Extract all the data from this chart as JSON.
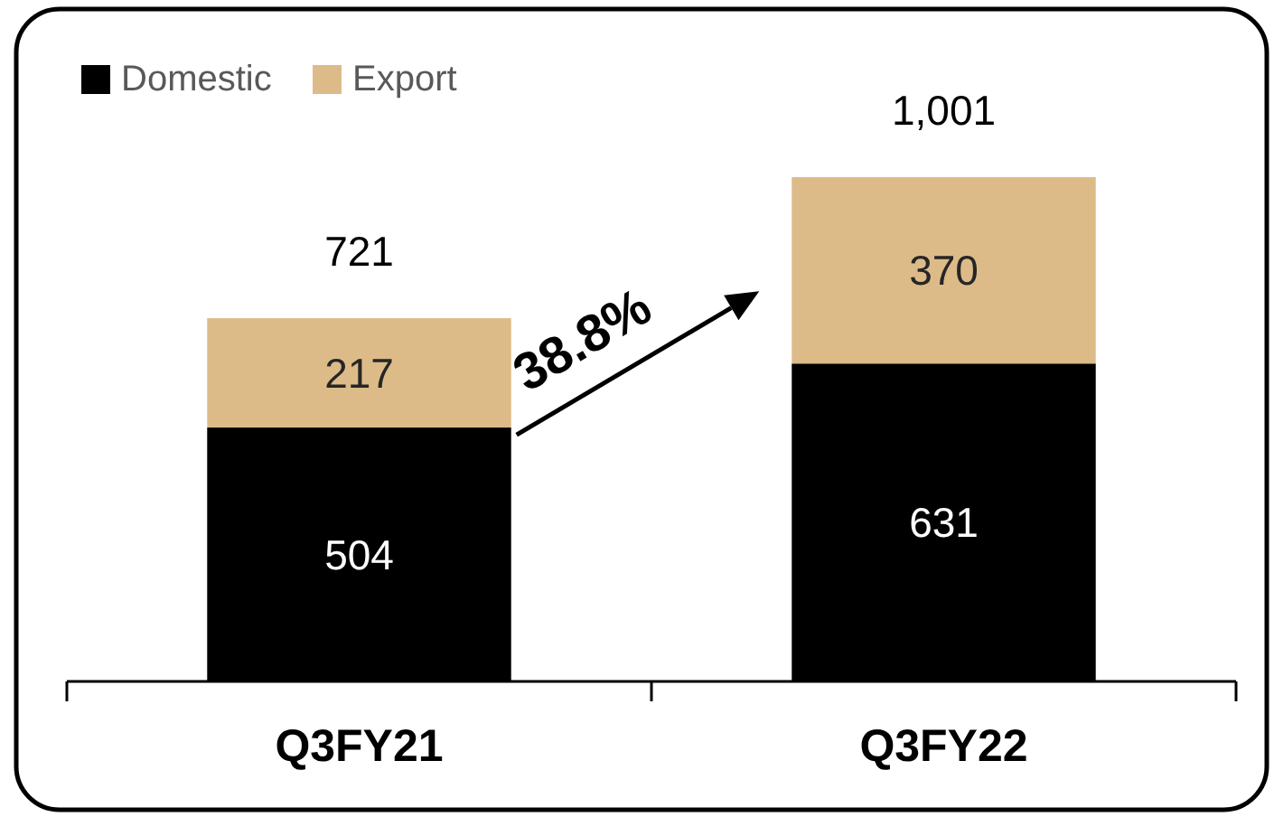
{
  "chart_data": {
    "type": "bar",
    "categories": [
      "Q3FY21",
      "Q3FY22"
    ],
    "stacked": true,
    "series": [
      {
        "name": "Domestic",
        "color": "#000000",
        "values": [
          504,
          631
        ]
      },
      {
        "name": "Export",
        "color": "#ddbb88",
        "values": [
          217,
          370
        ]
      }
    ],
    "data_labels": true,
    "totals": [
      "721",
      "1,001"
    ],
    "legend": "top left",
    "annotations": [
      "38.8%"
    ],
    "tick_labels": "x"
  }
}
